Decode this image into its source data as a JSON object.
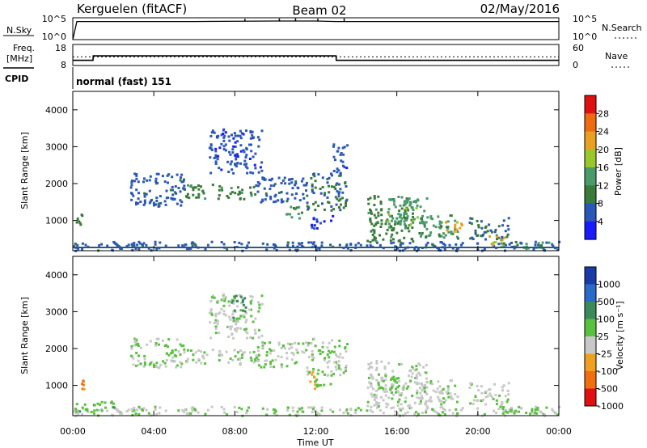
{
  "header": {
    "station": "Kerguelen (fitACF)",
    "beam": "Beam 02",
    "date": "02/May/2016"
  },
  "top_panels": {
    "nsky_label": "N.Sky",
    "nsky_ticks": [
      "10^5",
      "10^0"
    ],
    "nsearch_label": "N.Search",
    "nsearch_ticks": [
      "10^5",
      "10^0"
    ],
    "freq_label": "Freq.",
    "freq_unit": "[MHz]",
    "freq_ticks": [
      "18",
      "8"
    ],
    "nave_label": "Nave",
    "nave_ticks": [
      "60",
      "0"
    ],
    "cpid_label": "CPID",
    "cpid_value": "normal (fast) 151"
  },
  "time_axis": {
    "label": "Time UT",
    "ticks": [
      "00:00",
      "04:00",
      "08:00",
      "12:00",
      "16:00",
      "20:00",
      "00:00"
    ]
  },
  "power_panel": {
    "ylabel": "Slant Range [km]",
    "yticks": [
      "1000",
      "2000",
      "3000",
      "4000"
    ],
    "colorbar_label": "Power [dB]",
    "colorbar_ticks": [
      "4",
      "8",
      "12",
      "16",
      "20",
      "24",
      "28"
    ]
  },
  "velocity_panel": {
    "ylabel": "Slant Range [km]",
    "yticks": [
      "1000",
      "2000",
      "3000",
      "4000"
    ],
    "colorbar_label": "Velocity [m s⁻¹]",
    "colorbar_ticks": [
      "1000",
      "500",
      "100",
      "25",
      "-25",
      "-100",
      "-500",
      "-1000"
    ]
  },
  "colors": {
    "power_scale": [
      "#1a1aff",
      "#2a58b8",
      "#3a7a3a",
      "#4a9a6a",
      "#9ac62a",
      "#e8a020",
      "#f06a10",
      "#e01010"
    ],
    "velocity_scale": [
      "#1a3aa8",
      "#2a6ac8",
      "#3a8a5a",
      "#5ac040",
      "#c8c8c8",
      "#f0a020",
      "#f07010",
      "#e01010"
    ],
    "frequency_line": "#000000"
  },
  "chart_data": [
    {
      "type": "line",
      "title": "N.Sky / N.Search",
      "x_unit": "hours UT",
      "xlim": [
        0,
        24
      ],
      "y_scale": "log",
      "ylim": [
        1,
        100000
      ],
      "x": [
        0,
        0.2,
        6,
        10,
        12,
        13,
        24
      ],
      "series": [
        {
          "name": "N.Sky",
          "values": [
            1,
            30000,
            30000,
            40000,
            40000,
            30000,
            30000
          ]
        }
      ]
    },
    {
      "type": "line",
      "title": "Freq. / Nave",
      "xlim": [
        0,
        24
      ],
      "ylim": [
        8,
        18
      ],
      "x": [
        0,
        1,
        1.01,
        13,
        13.01,
        24
      ],
      "series": [
        {
          "name": "Freq.",
          "values": [
            10,
            10,
            12.5,
            12.5,
            10,
            10
          ]
        },
        {
          "name": "Nave",
          "values": [
            12,
            12,
            12,
            12,
            12,
            12
          ]
        }
      ]
    },
    {
      "type": "heatmap",
      "title": "Power [dB]",
      "xlim": [
        0,
        24
      ],
      "ylim": [
        180,
        4500
      ],
      "zlim": [
        0,
        30
      ],
      "regions": [
        {
          "t0": 0.0,
          "t1": 24.0,
          "r0": 200,
          "r1": 450,
          "v": 6
        },
        {
          "t0": 0.1,
          "t1": 0.6,
          "r0": 900,
          "r1": 1250,
          "v": 8
        },
        {
          "t0": 2.8,
          "t1": 5.5,
          "r0": 1400,
          "r1": 2300,
          "v": 6
        },
        {
          "t0": 5.5,
          "t1": 9.0,
          "r0": 1600,
          "r1": 2000,
          "v": 10
        },
        {
          "t0": 6.7,
          "t1": 9.3,
          "r0": 2300,
          "r1": 3500,
          "v": 5
        },
        {
          "t0": 9.0,
          "t1": 11.5,
          "r0": 1500,
          "r1": 2200,
          "v": 6
        },
        {
          "t0": 10.5,
          "t1": 11.3,
          "r0": 1000,
          "r1": 1400,
          "v": 12
        },
        {
          "t0": 11.7,
          "t1": 12.8,
          "r0": 800,
          "r1": 1150,
          "v": 4
        },
        {
          "t0": 11.5,
          "t1": 13.5,
          "r0": 1300,
          "r1": 2300,
          "v": 8
        },
        {
          "t0": 12.8,
          "t1": 13.5,
          "r0": 2300,
          "r1": 3200,
          "v": 5
        },
        {
          "t0": 14.5,
          "t1": 16.8,
          "r0": 400,
          "r1": 1700,
          "v": 10
        },
        {
          "t0": 15.5,
          "t1": 17.5,
          "r0": 900,
          "r1": 1700,
          "v": 14
        },
        {
          "t0": 17.0,
          "t1": 19.0,
          "r0": 500,
          "r1": 1200,
          "v": 12
        },
        {
          "t0": 18.3,
          "t1": 19.3,
          "r0": 700,
          "r1": 1000,
          "v": 20
        },
        {
          "t0": 19.5,
          "t1": 21.5,
          "r0": 500,
          "r1": 1100,
          "v": 8
        },
        {
          "t0": 20.5,
          "t1": 21.5,
          "r0": 300,
          "r1": 600,
          "v": 18
        },
        {
          "t0": 21.0,
          "t1": 23.5,
          "r0": 250,
          "r1": 450,
          "v": 12
        }
      ]
    },
    {
      "type": "heatmap",
      "title": "Velocity [m s⁻¹]",
      "xlim": [
        0,
        24
      ],
      "ylim": [
        180,
        4500
      ],
      "zlim": [
        -1000,
        1000
      ],
      "regions": [
        {
          "t0": 0.0,
          "t1": 24.0,
          "r0": 200,
          "r1": 450,
          "v": -30
        },
        {
          "t0": 0.1,
          "t1": 2.0,
          "r0": 250,
          "r1": 600,
          "v": 150
        },
        {
          "t0": 0.4,
          "t1": 0.6,
          "r0": 900,
          "r1": 1200,
          "v": -600
        },
        {
          "t0": 2.8,
          "t1": 5.5,
          "r0": 1500,
          "r1": 2300,
          "v": 0
        },
        {
          "t0": 5.5,
          "t1": 9.0,
          "r0": 1600,
          "r1": 2000,
          "v": -10
        },
        {
          "t0": 6.7,
          "t1": 9.3,
          "r0": 2300,
          "r1": 3500,
          "v": -60
        },
        {
          "t0": 7.8,
          "t1": 8.5,
          "r0": 2800,
          "r1": 3500,
          "v": 300
        },
        {
          "t0": 9.0,
          "t1": 11.5,
          "r0": 1500,
          "r1": 2200,
          "v": 0
        },
        {
          "t0": 11.5,
          "t1": 12.0,
          "r0": 900,
          "r1": 1400,
          "v": -400
        },
        {
          "t0": 11.8,
          "t1": 12.8,
          "r0": 1000,
          "r1": 1200,
          "v": 120
        },
        {
          "t0": 11.5,
          "t1": 13.5,
          "r0": 1300,
          "r1": 2300,
          "v": 0
        },
        {
          "t0": 14.5,
          "t1": 17.5,
          "r0": 400,
          "r1": 1700,
          "v": -50
        },
        {
          "t0": 15.0,
          "t1": 16.5,
          "r0": 900,
          "r1": 1300,
          "v": 5
        },
        {
          "t0": 17.0,
          "t1": 19.0,
          "r0": 500,
          "r1": 1200,
          "v": -80
        },
        {
          "t0": 17.8,
          "t1": 18.6,
          "r0": 800,
          "r1": 1000,
          "v": 10
        },
        {
          "t0": 19.5,
          "t1": 21.5,
          "r0": 500,
          "r1": 1100,
          "v": -60
        },
        {
          "t0": 21.0,
          "t1": 23.5,
          "r0": 250,
          "r1": 450,
          "v": 150
        }
      ]
    }
  ]
}
